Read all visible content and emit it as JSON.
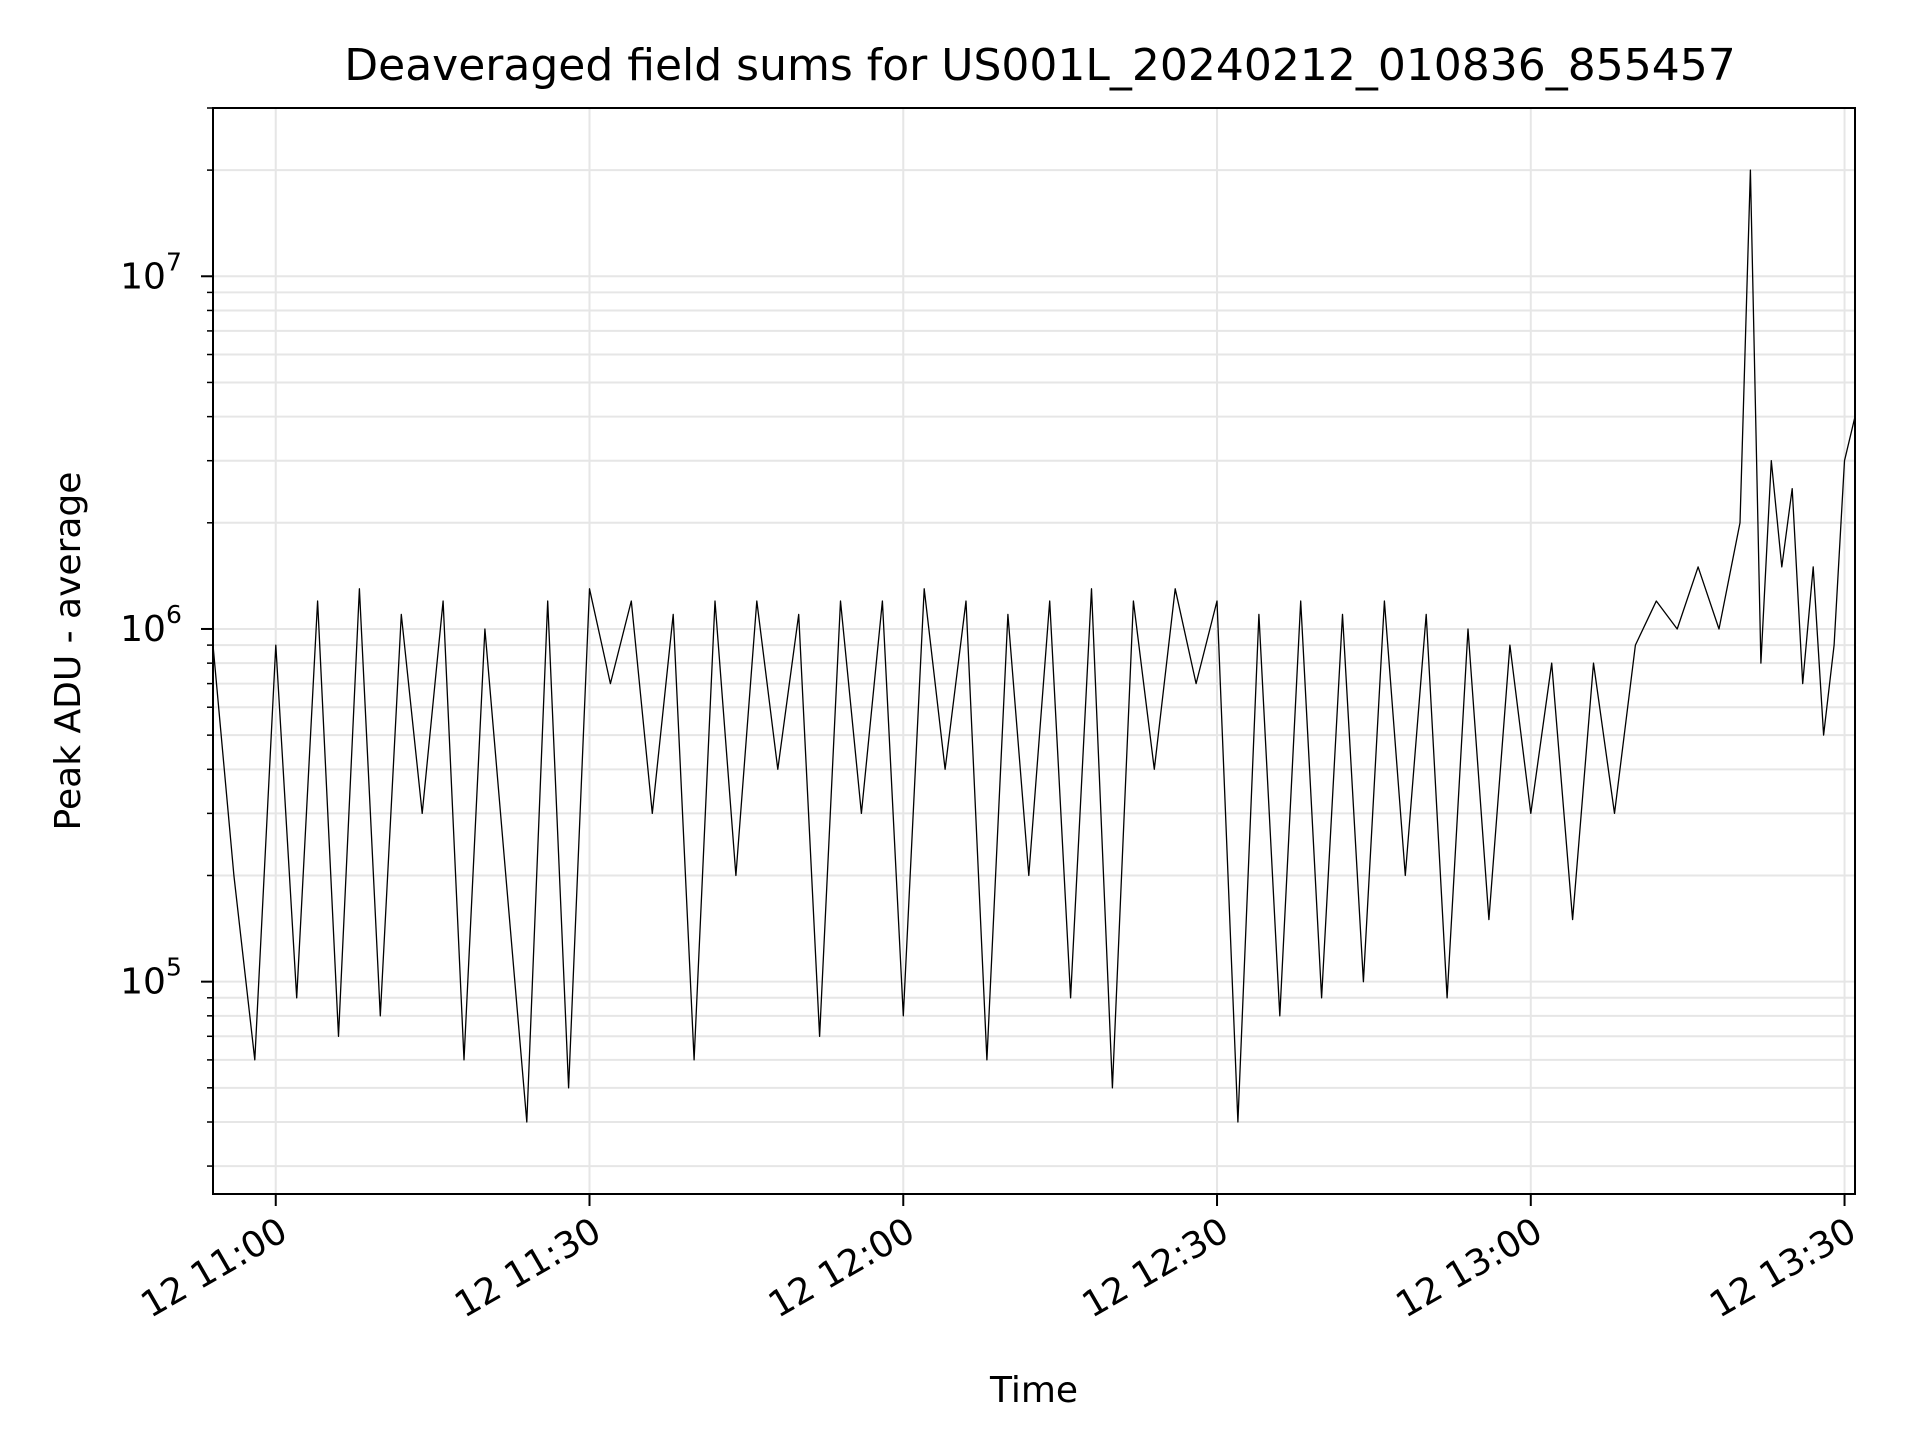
{
  "chart_data": {
    "type": "line",
    "title": "Deaveraged field sums for US001L_20240212_010836_855457",
    "xlabel": "Time",
    "ylabel": "Peak ADU - average",
    "x_range": [
      "10:54",
      "13:31"
    ],
    "ylim": [
      25000,
      30000000
    ],
    "y_scale": "log",
    "grid": true,
    "line_color": "#000000",
    "x_ticks": [
      {
        "t": "11:00",
        "label": "12 11:00"
      },
      {
        "t": "11:30",
        "label": "12 11:30"
      },
      {
        "t": "12:00",
        "label": "12 12:00"
      },
      {
        "t": "12:30",
        "label": "12 12:30"
      },
      {
        "t": "13:00",
        "label": "12 13:00"
      },
      {
        "t": "13:30",
        "label": "12 13:30"
      }
    ],
    "y_ticks": [
      {
        "value": 100000,
        "base": "10",
        "exp": "5"
      },
      {
        "value": 1000000,
        "base": "10",
        "exp": "6"
      },
      {
        "value": 10000000,
        "base": "10",
        "exp": "7"
      }
    ],
    "series": [
      {
        "points": [
          [
            "10:54",
            900000
          ],
          [
            "10:56",
            200000
          ],
          [
            "10:58",
            60000
          ],
          [
            "11:00",
            900000
          ],
          [
            "11:02",
            90000
          ],
          [
            "11:04",
            1200000
          ],
          [
            "11:06",
            70000
          ],
          [
            "11:08",
            1300000
          ],
          [
            "11:10",
            80000
          ],
          [
            "11:12",
            1100000
          ],
          [
            "11:14",
            300000
          ],
          [
            "11:16",
            1200000
          ],
          [
            "11:18",
            60000
          ],
          [
            "11:20",
            1000000
          ],
          [
            "11:22",
            200000
          ],
          [
            "11:24",
            40000
          ],
          [
            "11:26",
            1200000
          ],
          [
            "11:28",
            50000
          ],
          [
            "11:30",
            1300000
          ],
          [
            "11:32",
            700000
          ],
          [
            "11:34",
            1200000
          ],
          [
            "11:36",
            300000
          ],
          [
            "11:38",
            1100000
          ],
          [
            "11:40",
            60000
          ],
          [
            "11:42",
            1200000
          ],
          [
            "11:44",
            200000
          ],
          [
            "11:46",
            1200000
          ],
          [
            "11:48",
            400000
          ],
          [
            "11:50",
            1100000
          ],
          [
            "11:52",
            70000
          ],
          [
            "11:54",
            1200000
          ],
          [
            "11:56",
            300000
          ],
          [
            "11:58",
            1200000
          ],
          [
            "12:00",
            80000
          ],
          [
            "12:02",
            1300000
          ],
          [
            "12:04",
            400000
          ],
          [
            "12:06",
            1200000
          ],
          [
            "12:08",
            60000
          ],
          [
            "12:10",
            1100000
          ],
          [
            "12:12",
            200000
          ],
          [
            "12:14",
            1200000
          ],
          [
            "12:16",
            90000
          ],
          [
            "12:18",
            1300000
          ],
          [
            "12:20",
            50000
          ],
          [
            "12:22",
            1200000
          ],
          [
            "12:24",
            400000
          ],
          [
            "12:26",
            1300000
          ],
          [
            "12:28",
            700000
          ],
          [
            "12:30",
            1200000
          ],
          [
            "12:32",
            40000
          ],
          [
            "12:34",
            1100000
          ],
          [
            "12:36",
            80000
          ],
          [
            "12:38",
            1200000
          ],
          [
            "12:40",
            90000
          ],
          [
            "12:42",
            1100000
          ],
          [
            "12:44",
            100000
          ],
          [
            "12:46",
            1200000
          ],
          [
            "12:48",
            200000
          ],
          [
            "12:50",
            1100000
          ],
          [
            "12:52",
            90000
          ],
          [
            "12:54",
            1000000
          ],
          [
            "12:56",
            150000
          ],
          [
            "12:58",
            900000
          ],
          [
            "13:00",
            300000
          ],
          [
            "13:02",
            800000
          ],
          [
            "13:04",
            150000
          ],
          [
            "13:06",
            800000
          ],
          [
            "13:08",
            300000
          ],
          [
            "13:10",
            900000
          ],
          [
            "13:12",
            1200000
          ],
          [
            "13:14",
            1000000
          ],
          [
            "13:16",
            1500000
          ],
          [
            "13:18",
            1000000
          ],
          [
            "13:20",
            2000000
          ],
          [
            "13:21",
            20000000
          ],
          [
            "13:22",
            800000
          ],
          [
            "13:23",
            3000000
          ],
          [
            "13:24",
            1500000
          ],
          [
            "13:25",
            2500000
          ],
          [
            "13:26",
            700000
          ],
          [
            "13:27",
            1500000
          ],
          [
            "13:28",
            500000
          ],
          [
            "13:29",
            900000
          ],
          [
            "13:30",
            3000000
          ],
          [
            "13:31",
            4000000
          ]
        ]
      }
    ]
  }
}
